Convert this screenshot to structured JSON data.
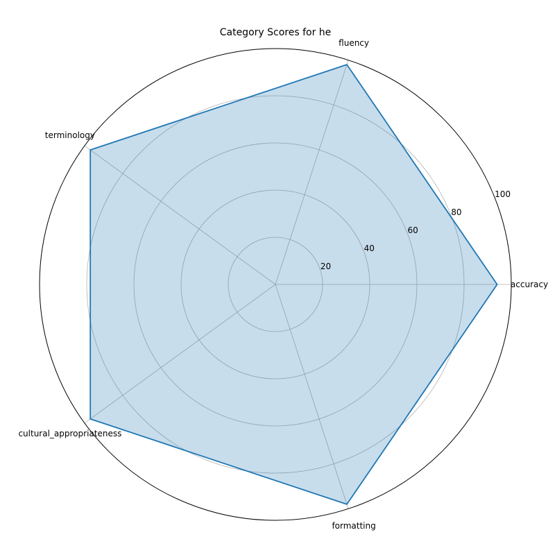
{
  "chart_data": {
    "type": "radar",
    "title": "Category Scores for he",
    "categories": [
      "accuracy",
      "fluency",
      "terminology",
      "cultural_appropriateness",
      "formatting"
    ],
    "series": [
      {
        "values": [
          94,
          98,
          97,
          97,
          98
        ]
      }
    ],
    "rlim": [
      0,
      100
    ],
    "rticks": [
      20,
      40,
      60,
      80,
      100
    ],
    "grid": true,
    "colors": {
      "line": "#1f77b4",
      "fill": "#1f77b4",
      "grid": "#b0b0b0",
      "frame": "#000000"
    }
  }
}
